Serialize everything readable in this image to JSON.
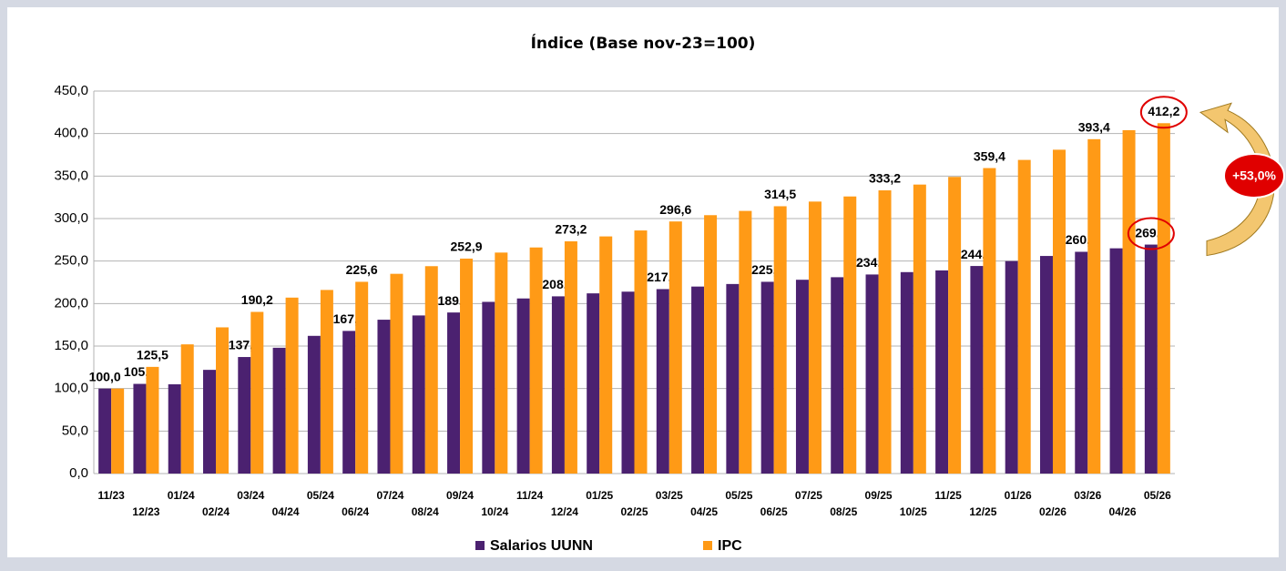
{
  "chart_data": {
    "type": "bar",
    "title": "Índice (Base nov-23=100)",
    "categories": [
      "11/23",
      "12/23",
      "01/24",
      "02/24",
      "03/24",
      "04/24",
      "05/24",
      "06/24",
      "07/24",
      "08/24",
      "09/24",
      "10/24",
      "11/24",
      "12/24",
      "01/25",
      "02/25",
      "03/25",
      "04/25",
      "05/25",
      "06/25",
      "07/25",
      "08/25",
      "09/25",
      "10/25",
      "11/25",
      "12/25",
      "01/26",
      "02/26",
      "03/26",
      "04/26",
      "05/26"
    ],
    "series": [
      {
        "name": "Salarios UUNN",
        "color": "#4b2170",
        "values": [
          100.0,
          105.5,
          105,
          122,
          137.1,
          148,
          162,
          167.8,
          181,
          186,
          189.5,
          202,
          206,
          208.5,
          212,
          214,
          217.0,
          220,
          223,
          225.6,
          228,
          231,
          234.2,
          237,
          239,
          244.2,
          250,
          256,
          260.9,
          265,
          269.4
        ],
        "value_labels": [
          "100,0",
          "105,5",
          null,
          null,
          "137,1",
          null,
          null,
          "167,8",
          null,
          null,
          "189,5",
          null,
          null,
          "208,5",
          null,
          null,
          "217,0",
          null,
          null,
          "225,6",
          null,
          null,
          "234,2",
          null,
          null,
          "244,2",
          null,
          null,
          "260,9",
          null,
          "269,4"
        ]
      },
      {
        "name": "IPC",
        "color": "#ff9a16",
        "values": [
          100,
          125.5,
          152,
          172,
          190.2,
          207,
          216,
          225.6,
          235,
          244,
          252.9,
          260,
          266,
          273.2,
          279,
          286,
          296.6,
          304,
          309,
          314.5,
          320,
          326,
          333.2,
          340,
          349,
          359.4,
          369,
          381,
          393.4,
          404,
          412.2
        ],
        "value_labels": [
          null,
          "125,5",
          null,
          null,
          "190,2",
          null,
          null,
          "225,6",
          null,
          null,
          "252,9",
          null,
          null,
          "273,2",
          null,
          null,
          "296,6",
          null,
          null,
          "314,5",
          null,
          null,
          "333,2",
          null,
          null,
          "359,4",
          null,
          null,
          "393,4",
          null,
          "412,2"
        ]
      }
    ],
    "ylim": [
      0,
      450
    ],
    "yticks": [
      {
        "value": 0,
        "label": "0,0"
      },
      {
        "value": 50,
        "label": "50,0"
      },
      {
        "value": 100,
        "label": "100,0"
      },
      {
        "value": 150,
        "label": "150,0"
      },
      {
        "value": 200,
        "label": "200,0"
      },
      {
        "value": 250,
        "label": "250,0"
      },
      {
        "value": 300,
        "label": "300,0"
      },
      {
        "value": 350,
        "label": "350,0"
      },
      {
        "value": 400,
        "label": "400,0"
      },
      {
        "value": 450,
        "label": "450,0"
      }
    ],
    "grid": true,
    "annotation": "+53,0%"
  }
}
